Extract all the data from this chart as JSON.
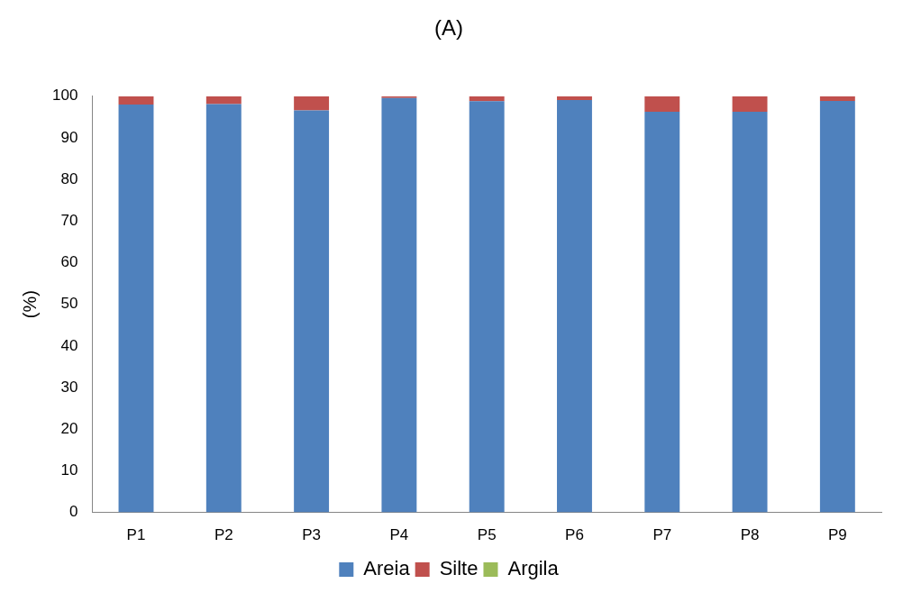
{
  "chart_data": {
    "type": "bar",
    "title": "(A)",
    "ylabel": "(%)",
    "stacked": true,
    "grid": false,
    "legend": "bottom",
    "categories": [
      "P1",
      "P2",
      "P3",
      "P4",
      "P5",
      "P6",
      "P7",
      "P8",
      "P9"
    ],
    "series": [
      {
        "name": "Areia",
        "color": "#4f81bd",
        "values": [
          98.0,
          98.1,
          96.6,
          99.6,
          98.8,
          99.1,
          96.3,
          96.3,
          98.9
        ]
      },
      {
        "name": "Silte",
        "color": "#c0504d",
        "values": [
          2.0,
          1.9,
          3.4,
          0.4,
          1.2,
          0.9,
          3.7,
          3.7,
          1.1
        ]
      },
      {
        "name": "Argila",
        "color": "#9bbb59",
        "values": [
          0,
          0,
          0,
          0,
          0,
          0,
          0,
          0,
          0
        ]
      }
    ],
    "ylim": [
      0,
      100
    ],
    "yticks": [
      0,
      10,
      20,
      30,
      40,
      50,
      60,
      70,
      80,
      90,
      100
    ]
  }
}
